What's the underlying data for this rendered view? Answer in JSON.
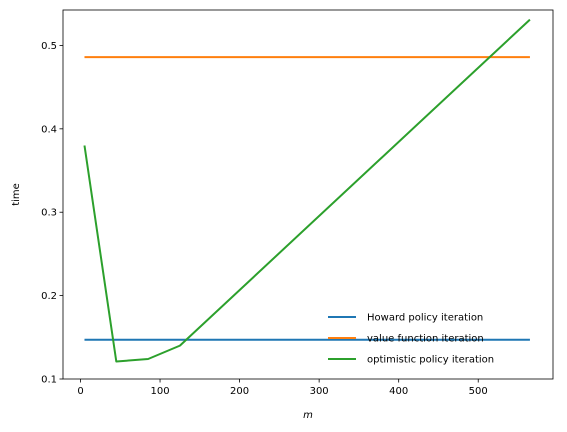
{
  "chart_data": {
    "type": "line",
    "title": "",
    "xlabel": "m",
    "ylabel": "time",
    "xlim": [
      -22,
      594
    ],
    "ylim": [
      0.1,
      0.5425
    ],
    "xticks": [
      0,
      100,
      200,
      300,
      400,
      500
    ],
    "yticks": [
      0.1,
      0.2,
      0.3,
      0.4,
      0.5
    ],
    "xtick_labels": [
      "0",
      "100",
      "200",
      "300",
      "400",
      "500"
    ],
    "ytick_labels": [
      "0.1",
      "0.2",
      "0.3",
      "0.4",
      "0.5"
    ],
    "grid": false,
    "legend_position": "lower-right",
    "series": [
      {
        "name": "Howard policy iteration",
        "color": "#1f77b4",
        "x": [
          5,
          565
        ],
        "y": [
          0.147,
          0.147
        ]
      },
      {
        "name": "value function iteration",
        "color": "#ff7f0e",
        "x": [
          5,
          565
        ],
        "y": [
          0.486,
          0.486
        ]
      },
      {
        "name": "optimistic policy iteration",
        "color": "#2ca02c",
        "x": [
          5,
          45,
          85,
          125,
          565
        ],
        "y": [
          0.38,
          0.121,
          0.124,
          0.14,
          0.531
        ]
      }
    ]
  }
}
